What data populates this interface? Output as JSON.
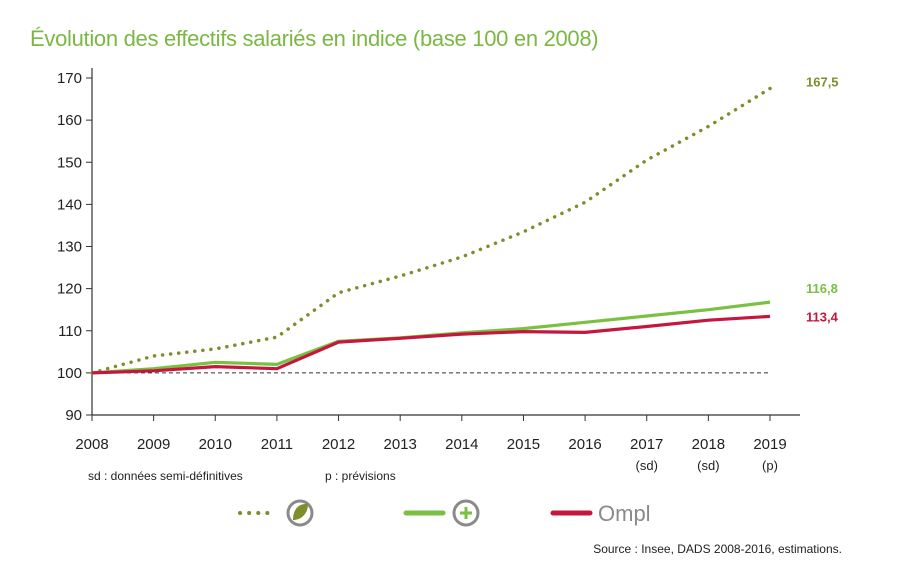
{
  "chart_data": {
    "type": "line",
    "title": "Évolution des effectifs salariés en indice (base 100 en 2008)",
    "xlabel": "",
    "ylabel": "",
    "ylim": [
      90,
      170
    ],
    "yticks": [
      "90",
      "100",
      "110",
      "120",
      "130",
      "140",
      "150",
      "160",
      "170"
    ],
    "categories": [
      "2008",
      "2009",
      "2010",
      "2011",
      "2012",
      "2013",
      "2014",
      "2015",
      "2016",
      "2017",
      "2018",
      "2019"
    ],
    "category_subs": [
      "",
      "",
      "",
      "",
      "",
      "",
      "",
      "",
      "",
      "(sd)",
      "(sd)",
      "(p)"
    ],
    "baseline": 100,
    "grid": false,
    "legend_position": "bottom",
    "series": [
      {
        "key": "dotted",
        "style": "dotted",
        "color": "#7d8f2c",
        "values": [
          100,
          104,
          105.7,
          108.5,
          119,
          123,
          127.5,
          133.5,
          140.5,
          150.5,
          158.5,
          167.5
        ],
        "end_label": "167,5"
      },
      {
        "key": "green",
        "style": "solid",
        "color": "#7ac143",
        "values": [
          100,
          101,
          102.5,
          102,
          107.5,
          108.3,
          109.5,
          110.5,
          112,
          113.5,
          115,
          116.8
        ],
        "end_label": "116,8"
      },
      {
        "key": "red",
        "style": "solid",
        "color": "#c5173e",
        "values": [
          100,
          100.5,
          101.5,
          101,
          107.3,
          108.2,
          109.2,
          109.8,
          109.6,
          111,
          112.5,
          113.4
        ],
        "end_label": "113,4"
      }
    ],
    "legend": [
      {
        "series": "dotted",
        "icon": "leaf-circle-icon"
      },
      {
        "series": "green",
        "icon": "plus-circle-icon"
      },
      {
        "series": "red",
        "icon": "ompl-logo",
        "logo_text": "Ompl"
      }
    ]
  },
  "notes": {
    "sd": "sd : données semi-définitives",
    "p": "p : prévisions",
    "source": "Source : Insee, DADS 2008-2016, estimations."
  }
}
